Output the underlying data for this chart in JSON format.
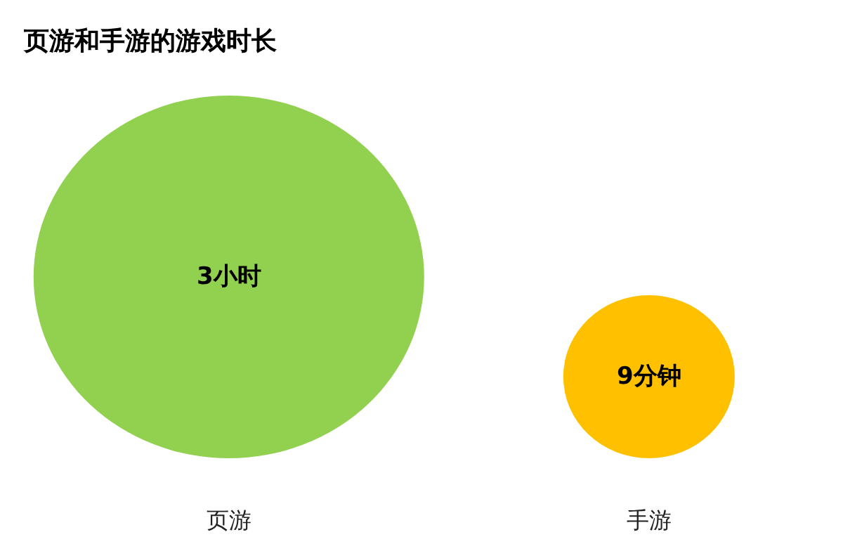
{
  "chart_data": {
    "type": "other",
    "title": "页游和手游的游戏时长",
    "categories": [
      "页游",
      "手游"
    ],
    "values": [
      3,
      9
    ],
    "value_labels": [
      "3小时",
      "9分钟"
    ],
    "colors": [
      "#92d050",
      "#ffc000"
    ]
  }
}
